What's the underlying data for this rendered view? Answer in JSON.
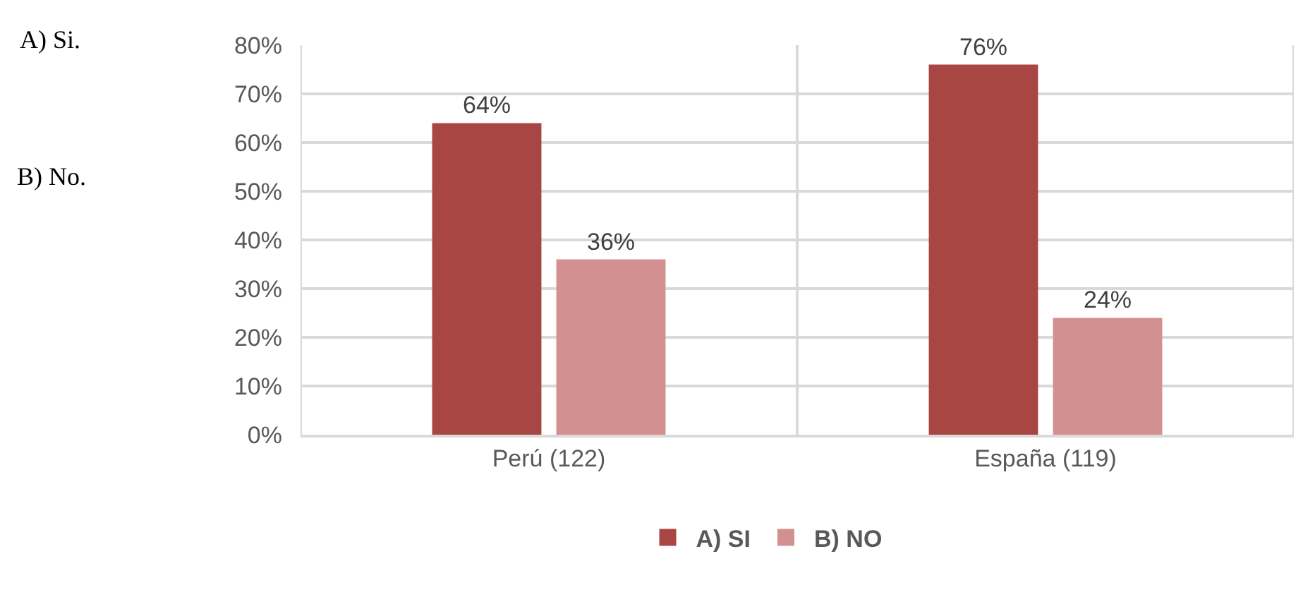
{
  "chart_data": {
    "type": "bar",
    "categories": [
      "Perú (122)",
      "España (119)"
    ],
    "series": [
      {
        "name": "A) SI",
        "color": "#a84644",
        "values": [
          64,
          76
        ],
        "value_labels": [
          "64%",
          "76%"
        ]
      },
      {
        "name": "B) NO",
        "color": "#d39090",
        "values": [
          36,
          24
        ],
        "value_labels": [
          "36%",
          "24%"
        ]
      }
    ],
    "ylim": [
      0,
      80
    ],
    "yticks": [
      {
        "value": 0,
        "label": "0%"
      },
      {
        "value": 10,
        "label": "10%"
      },
      {
        "value": 20,
        "label": "20%"
      },
      {
        "value": 30,
        "label": "30%"
      },
      {
        "value": 40,
        "label": "40%"
      },
      {
        "value": 50,
        "label": "50%"
      },
      {
        "value": 60,
        "label": "60%"
      },
      {
        "value": 70,
        "label": "70%"
      },
      {
        "value": 80,
        "label": "80%"
      }
    ],
    "grid": true,
    "legend": "bottom",
    "annotations": [
      "A) Si.",
      "B) No."
    ]
  }
}
